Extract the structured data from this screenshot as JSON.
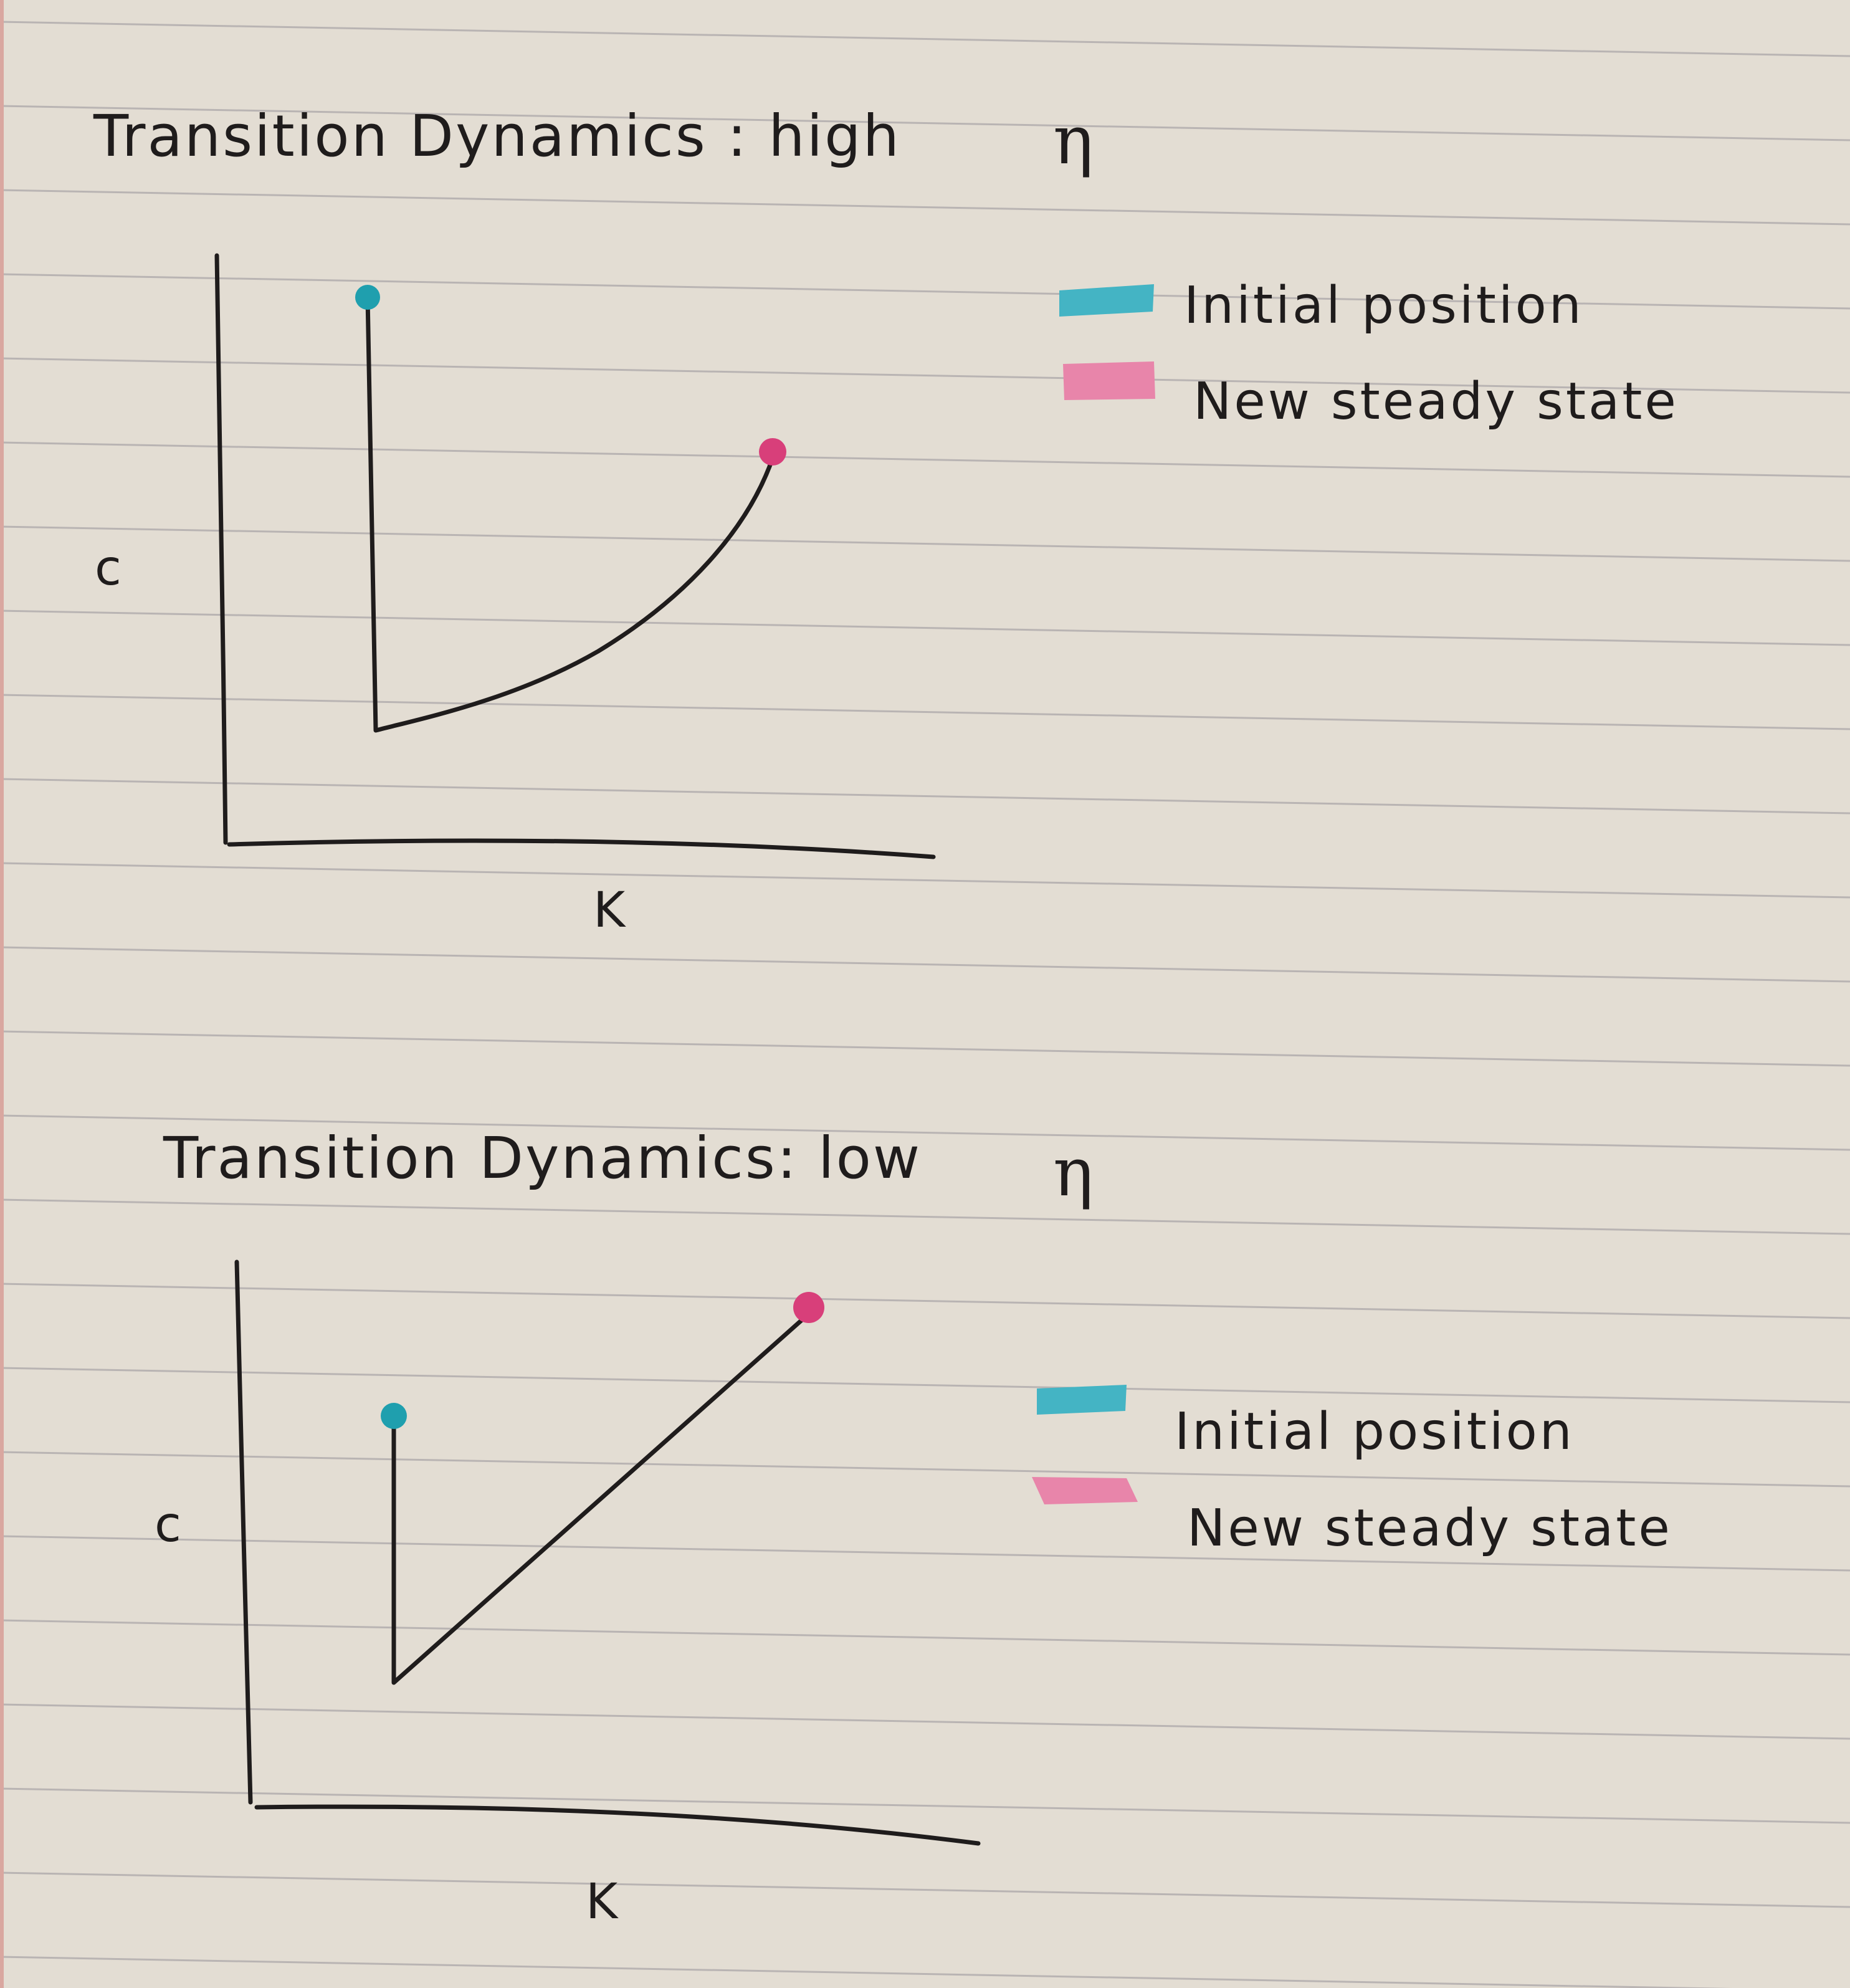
{
  "colors": {
    "paper": "#e3ddd3",
    "rule_line": "#b9b4b3",
    "ink": "#1f1c1c",
    "initial_marker": "#1f9fae",
    "initial_highlight": "#44b4c4",
    "new_marker": "#d83f7a",
    "new_highlight": "#e885aa"
  },
  "panels": [
    {
      "title": "Transition Dynamics :  high",
      "title_symbol": "η",
      "y_label": "c",
      "x_label": "K",
      "legend": [
        {
          "label": "Initial position",
          "color": "#44b4c4"
        },
        {
          "label": "New steady state",
          "color": "#e885aa"
        }
      ]
    },
    {
      "title": "Transition Dynamics:  low",
      "title_symbol": "η",
      "y_label": "c",
      "x_label": "K",
      "legend": [
        {
          "label": "Initial position",
          "color": "#44b4c4"
        },
        {
          "label": "New steady state",
          "color": "#e885aa"
        }
      ]
    }
  ]
}
